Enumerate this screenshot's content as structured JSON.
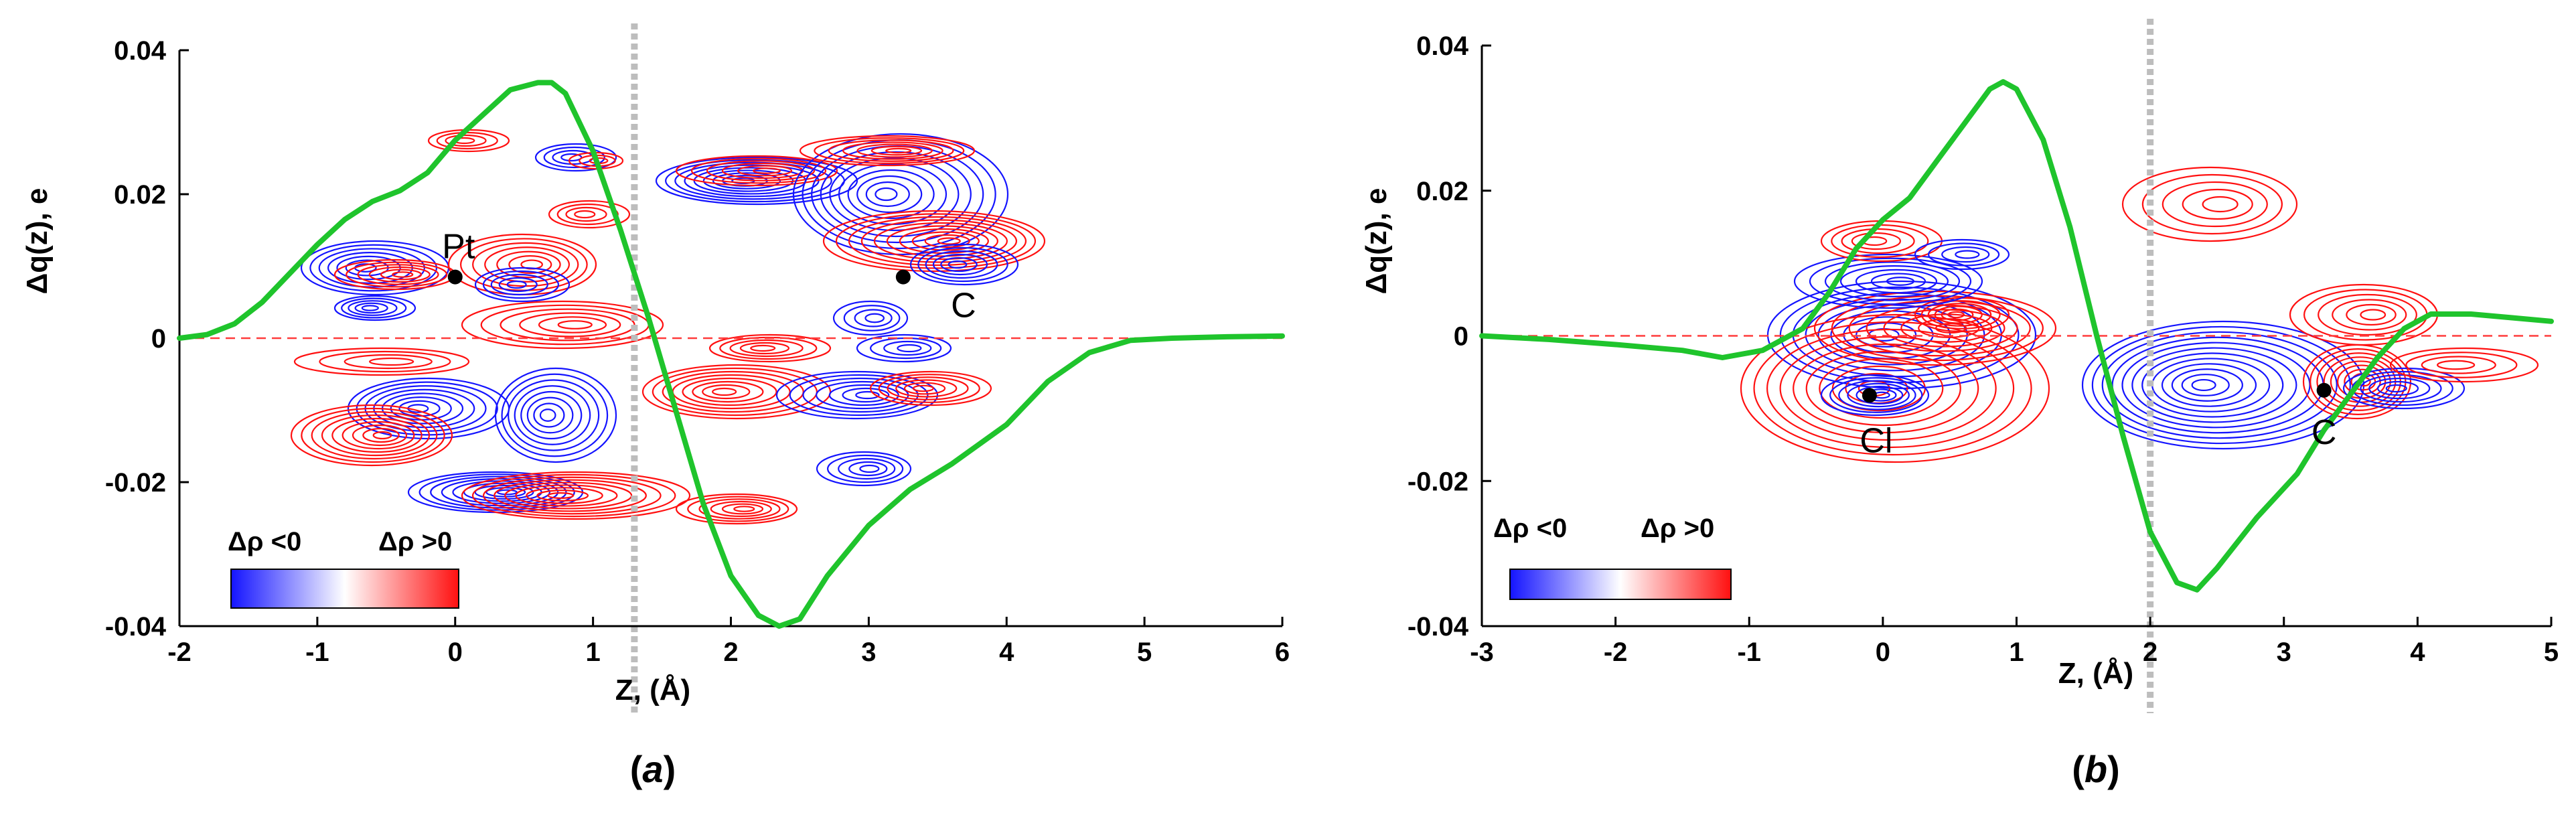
{
  "colors": {
    "curve": "#1fc42c",
    "negative": "#1414ff",
    "positive": "#ff1010",
    "zero_line": "#ff3b3b",
    "interface": "#bdbdbd"
  },
  "chart_data": [
    {
      "type": "line",
      "panel_label_letter": "a",
      "ylabel": "Δq(z), e",
      "xlabel": "Z, (Å)",
      "xlim": [
        -2,
        6
      ],
      "ylim": [
        -0.04,
        0.04
      ],
      "xticks": [
        "-2",
        "-1",
        "0",
        "1",
        "2",
        "3",
        "4",
        "5",
        "6"
      ],
      "yticks": [
        "0.04",
        "0.02",
        "0",
        "-0.02",
        "-0.04"
      ],
      "interface_z": 1.3,
      "series": [
        {
          "name": "Δq(z)",
          "x": [
            -2.0,
            -1.8,
            -1.6,
            -1.4,
            -1.2,
            -1.0,
            -0.8,
            -0.6,
            -0.4,
            -0.2,
            0.0,
            0.2,
            0.4,
            0.6,
            0.7,
            0.8,
            1.0,
            1.2,
            1.4,
            1.6,
            1.8,
            2.0,
            2.2,
            2.35,
            2.5,
            2.7,
            3.0,
            3.3,
            3.6,
            4.0,
            4.3,
            4.6,
            4.9,
            5.2,
            5.6,
            6.0
          ],
          "y": [
            0.0,
            0.0005,
            0.002,
            0.005,
            0.009,
            0.013,
            0.0165,
            0.019,
            0.0205,
            0.023,
            0.0275,
            0.031,
            0.0345,
            0.0355,
            0.0355,
            0.034,
            0.026,
            0.015,
            0.003,
            -0.01,
            -0.023,
            -0.033,
            -0.0385,
            -0.04,
            -0.039,
            -0.033,
            -0.026,
            -0.021,
            -0.0175,
            -0.012,
            -0.006,
            -0.002,
            -0.0003,
            0.0,
            0.0002,
            0.0003
          ]
        }
      ],
      "atoms": [
        {
          "label": "Pt",
          "z": 0.0,
          "q": 0.0085
        },
        {
          "label": "C",
          "z": 3.25,
          "q": 0.0085
        }
      ],
      "colorbar": {
        "negative_label": "Δρ <0",
        "positive_label": "Δρ >0"
      }
    },
    {
      "type": "line",
      "panel_label_letter": "b",
      "ylabel": "Δq(z), e",
      "xlabel": "Z, (Å)",
      "xlim": [
        -3,
        5
      ],
      "ylim": [
        -0.04,
        0.04
      ],
      "xticks": [
        "-3",
        "-2",
        "-1",
        "0",
        "1",
        "2",
        "3",
        "4",
        "5"
      ],
      "yticks": [
        "0.04",
        "0.02",
        "0",
        "-0.02",
        "-0.04"
      ],
      "interface_z": 2.0,
      "series": [
        {
          "name": "Δq(z)",
          "x": [
            -3.0,
            -2.5,
            -2.0,
            -1.5,
            -1.2,
            -0.9,
            -0.6,
            -0.4,
            -0.2,
            0.0,
            0.2,
            0.4,
            0.6,
            0.8,
            0.9,
            1.0,
            1.2,
            1.4,
            1.6,
            1.8,
            2.0,
            2.2,
            2.35,
            2.5,
            2.8,
            3.1,
            3.3,
            3.5,
            3.7,
            3.9,
            4.1,
            4.4,
            4.7,
            5.0
          ],
          "y": [
            0.0,
            -0.0005,
            -0.0012,
            -0.002,
            -0.003,
            -0.002,
            0.001,
            0.006,
            0.012,
            0.016,
            0.019,
            0.024,
            0.029,
            0.034,
            0.035,
            0.034,
            0.027,
            0.015,
            0.0,
            -0.014,
            -0.027,
            -0.034,
            -0.035,
            -0.032,
            -0.025,
            -0.019,
            -0.013,
            -0.008,
            -0.003,
            0.001,
            0.003,
            0.003,
            0.0025,
            0.002
          ]
        }
      ],
      "atoms": [
        {
          "label": "Cl",
          "z": -0.1,
          "q": -0.0082
        },
        {
          "label": "C",
          "z": 3.3,
          "q": -0.0075
        }
      ],
      "colorbar": {
        "negative_label": "Δρ <0",
        "positive_label": "Δρ >0"
      }
    }
  ]
}
